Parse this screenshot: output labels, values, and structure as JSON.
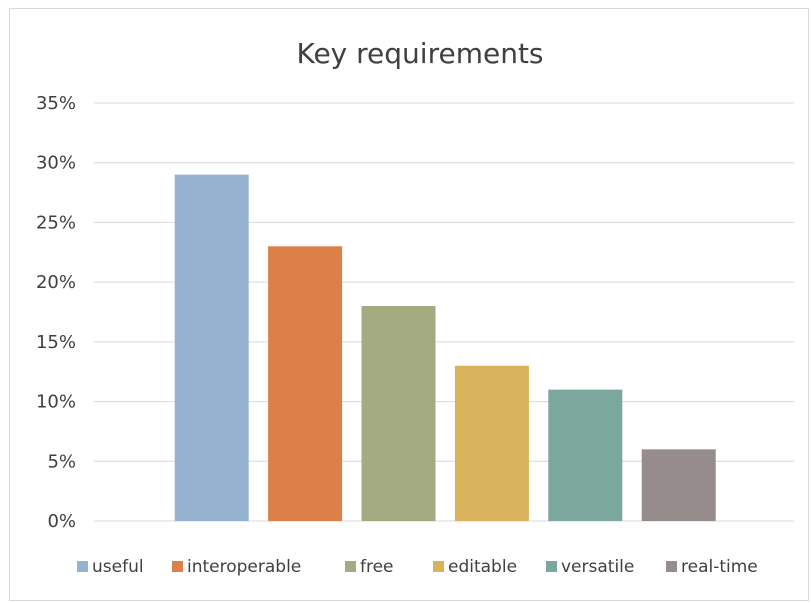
{
  "chart_data": {
    "type": "bar",
    "title": "Key requirements",
    "xlabel": "",
    "ylabel": "",
    "ylim": [
      0,
      0.35
    ],
    "y_ticks": [
      "0%",
      "5%",
      "10%",
      "15%",
      "20%",
      "25%",
      "30%",
      "35%"
    ],
    "grid": true,
    "legend_position": "bottom",
    "series": [
      {
        "name": "useful",
        "value": 0.29,
        "color": "#95b3d0"
      },
      {
        "name": "interoperable",
        "value": 0.23,
        "color": "#dd8047"
      },
      {
        "name": "free",
        "value": 0.18,
        "color": "#a5ab81"
      },
      {
        "name": "editable",
        "value": 0.13,
        "color": "#d8b25c"
      },
      {
        "name": "versatile",
        "value": 0.11,
        "color": "#7ba79d"
      },
      {
        "name": "real-time",
        "value": 0.06,
        "color": "#968c8c"
      }
    ]
  }
}
